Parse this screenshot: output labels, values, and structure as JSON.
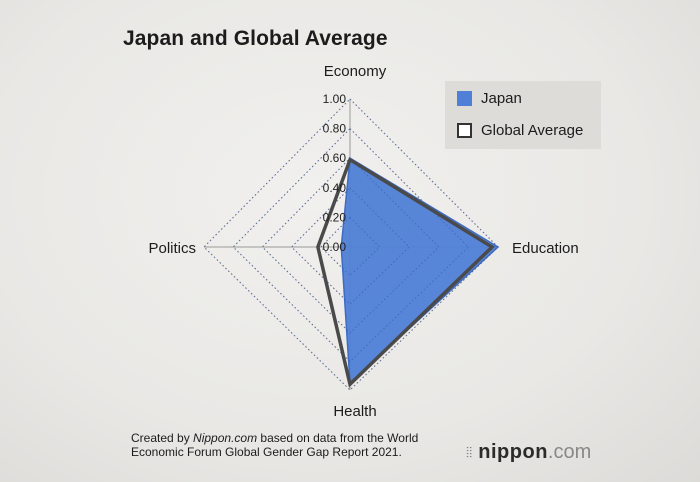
{
  "title": "Japan and Global Average",
  "chart_data": {
    "type": "radar",
    "axes": [
      "Economy",
      "Education",
      "Health",
      "Politics"
    ],
    "ticks": [
      "0.00",
      "0.20",
      "0.40",
      "0.60",
      "0.80",
      "1.00"
    ],
    "range": [
      0,
      1
    ],
    "grid": true,
    "legend_position": "top-right",
    "series": [
      {
        "name": "Japan",
        "values": [
          0.6,
          1.0,
          0.95,
          0.06
        ],
        "color": "#4f7fd6",
        "fill": true
      },
      {
        "name": "Global Average",
        "values": [
          0.59,
          0.96,
          0.96,
          0.22
        ],
        "color": "#4a4a4a",
        "fill": false
      }
    ]
  },
  "footer": {
    "line1_prefix": "Created by ",
    "line1_site": "Nippon.com",
    "line1_suffix": " based on data from the World",
    "line2": "Economic Forum Global Gender Gap Report 2021."
  },
  "logo": {
    "name": "nippon",
    "suffix": ".com",
    "icon": "nippon-logo-icon"
  }
}
